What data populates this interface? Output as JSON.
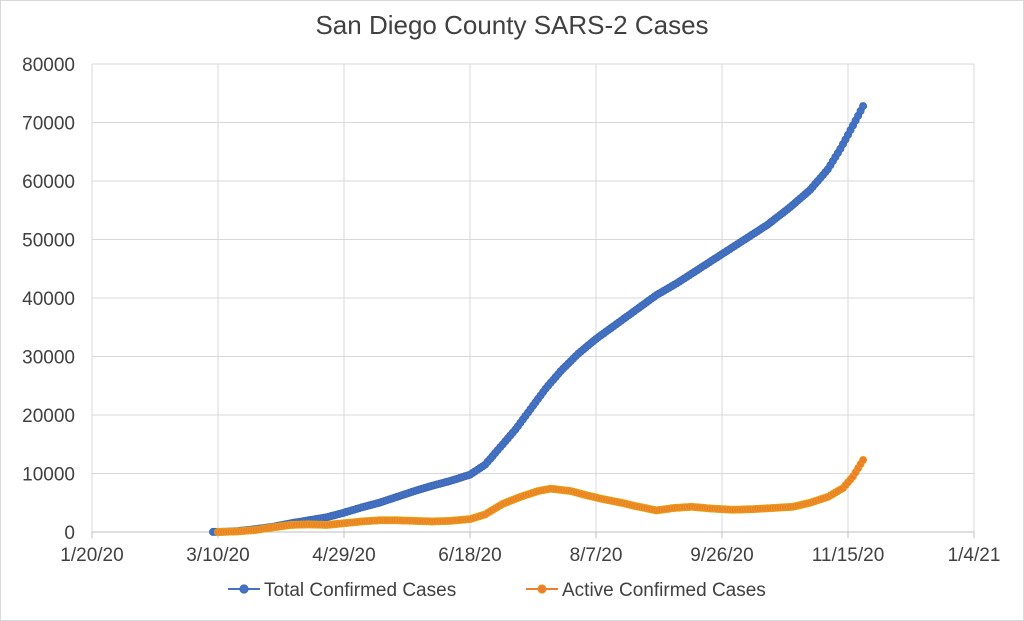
{
  "chart_data": {
    "type": "line",
    "title": "San Diego County SARS-2 Cases",
    "xlabel": "",
    "ylabel": "",
    "x_ticks": [
      "1/20/20",
      "3/10/20",
      "4/29/20",
      "6/18/20",
      "8/7/20",
      "9/26/20",
      "11/15/20",
      "1/4/21"
    ],
    "xlim": [
      "2020-01-20",
      "2021-01-04"
    ],
    "y_ticks": [
      "0",
      "10000",
      "20000",
      "30000",
      "40000",
      "50000",
      "60000",
      "70000",
      "80000"
    ],
    "ylim": [
      0,
      80000
    ],
    "grid": true,
    "legend_position": "bottom",
    "series": [
      {
        "name": "Total Confirmed Cases",
        "color": "#4472c4",
        "points": [
          [
            "2020-03-08",
            10
          ],
          [
            "2020-03-12",
            30
          ],
          [
            "2020-03-18",
            150
          ],
          [
            "2020-03-25",
            500
          ],
          [
            "2020-04-01",
            900
          ],
          [
            "2020-04-08",
            1500
          ],
          [
            "2020-04-15",
            2000
          ],
          [
            "2020-04-22",
            2500
          ],
          [
            "2020-04-29",
            3300
          ],
          [
            "2020-05-06",
            4200
          ],
          [
            "2020-05-13",
            5000
          ],
          [
            "2020-05-20",
            6000
          ],
          [
            "2020-05-27",
            7000
          ],
          [
            "2020-06-03",
            7900
          ],
          [
            "2020-06-10",
            8700
          ],
          [
            "2020-06-18",
            9800
          ],
          [
            "2020-06-24",
            11500
          ],
          [
            "2020-06-30",
            14500
          ],
          [
            "2020-07-06",
            17500
          ],
          [
            "2020-07-12",
            21000
          ],
          [
            "2020-07-18",
            24500
          ],
          [
            "2020-07-24",
            27500
          ],
          [
            "2020-07-31",
            30500
          ],
          [
            "2020-08-07",
            33000
          ],
          [
            "2020-08-15",
            35500
          ],
          [
            "2020-08-23",
            38000
          ],
          [
            "2020-08-31",
            40500
          ],
          [
            "2020-09-08",
            42500
          ],
          [
            "2020-09-17",
            45000
          ],
          [
            "2020-09-26",
            47500
          ],
          [
            "2020-10-05",
            50000
          ],
          [
            "2020-10-14",
            52500
          ],
          [
            "2020-10-23",
            55500
          ],
          [
            "2020-10-31",
            58500
          ],
          [
            "2020-11-07",
            62000
          ],
          [
            "2020-11-12",
            65500
          ],
          [
            "2020-11-17",
            69500
          ],
          [
            "2020-11-21",
            72800
          ]
        ]
      },
      {
        "name": "Active Confirmed Cases",
        "color": "#ed7d31",
        "points": [
          [
            "2020-03-10",
            0
          ],
          [
            "2020-03-18",
            100
          ],
          [
            "2020-03-25",
            350
          ],
          [
            "2020-04-01",
            800
          ],
          [
            "2020-04-08",
            1200
          ],
          [
            "2020-04-15",
            1300
          ],
          [
            "2020-04-22",
            1200
          ],
          [
            "2020-04-29",
            1500
          ],
          [
            "2020-05-06",
            1800
          ],
          [
            "2020-05-13",
            2000
          ],
          [
            "2020-05-20",
            2000
          ],
          [
            "2020-05-27",
            1900
          ],
          [
            "2020-06-03",
            1800
          ],
          [
            "2020-06-10",
            1900
          ],
          [
            "2020-06-18",
            2200
          ],
          [
            "2020-06-24",
            3000
          ],
          [
            "2020-07-01",
            4800
          ],
          [
            "2020-07-08",
            6000
          ],
          [
            "2020-07-15",
            7000
          ],
          [
            "2020-07-20",
            7400
          ],
          [
            "2020-07-28",
            7000
          ],
          [
            "2020-08-03",
            6300
          ],
          [
            "2020-08-10",
            5600
          ],
          [
            "2020-08-17",
            5000
          ],
          [
            "2020-08-24",
            4300
          ],
          [
            "2020-08-31",
            3700
          ],
          [
            "2020-09-07",
            4100
          ],
          [
            "2020-09-14",
            4300
          ],
          [
            "2020-09-22",
            4000
          ],
          [
            "2020-09-30",
            3800
          ],
          [
            "2020-10-08",
            3900
          ],
          [
            "2020-10-16",
            4100
          ],
          [
            "2020-10-24",
            4300
          ],
          [
            "2020-10-31",
            5000
          ],
          [
            "2020-11-07",
            6000
          ],
          [
            "2020-11-13",
            7500
          ],
          [
            "2020-11-17",
            9500
          ],
          [
            "2020-11-21",
            12300
          ]
        ]
      }
    ]
  }
}
